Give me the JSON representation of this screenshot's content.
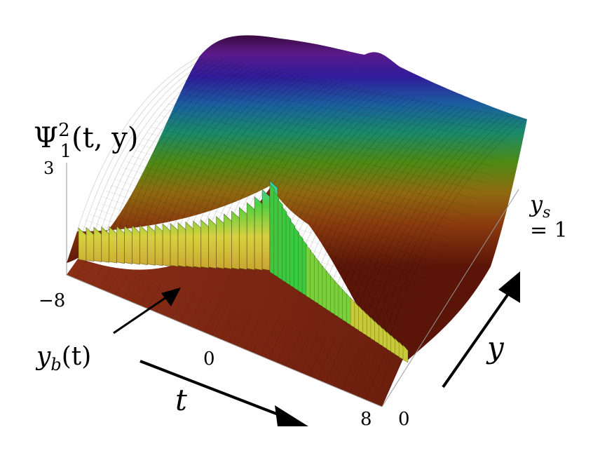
{
  "chart_data": {
    "type": "surface3d",
    "zlabel": {
      "base": "Ψ",
      "sup": "2",
      "sub": "1",
      "args": "(t, y)"
    },
    "xlabel": "t",
    "ylabel": "y",
    "x_ticks": [
      "−8",
      "0",
      "8"
    ],
    "y_ticks": [
      "0"
    ],
    "z_ticks": [
      "3"
    ],
    "xlim": [
      -8,
      8
    ],
    "ylim": [
      0,
      1
    ],
    "ys_label": {
      "name": "y",
      "sub": "s",
      "value": "= 1"
    },
    "curve_label": {
      "name": "y",
      "sub": "b",
      "args": "(t)"
    },
    "colormap": "rainbow (hue by height): red, orange, yellow, green, cyan, blue, purple",
    "features": [
      "ridge along t near y = ys",
      "moving boundary y_b(t) with jagged wall of height ~0.6 for t < 0, decaying for t > 0",
      "sharp peak near t = 0 at the boundary"
    ]
  }
}
